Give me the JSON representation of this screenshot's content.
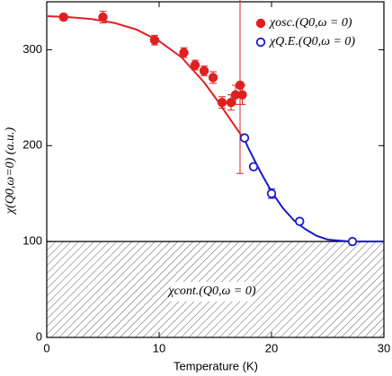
{
  "chart_data": {
    "type": "scatter",
    "xlabel": "Temperature (K)",
    "ylabel": "χ(Q0,ω=0) (a.u.)",
    "xlim": [
      0,
      30
    ],
    "ylim": [
      0,
      350
    ],
    "xticks": [
      0,
      10,
      20,
      30
    ],
    "yticks": [
      0,
      100,
      200,
      300
    ],
    "legend": "upper right",
    "series": [
      {
        "name": "χosc.(Q0,ω = 0)",
        "color": "#e02020",
        "marker": "filled",
        "x": [
          1.5,
          5,
          9.6,
          12.2,
          13.2,
          14,
          14.8,
          15.6,
          16.4,
          16.8,
          17.2,
          17.4
        ],
        "values": [
          334,
          334,
          310,
          297,
          284,
          278,
          271,
          245,
          245,
          253,
          263,
          253
        ],
        "errors": [
          3,
          6,
          5,
          5,
          5,
          5,
          6,
          6,
          8,
          10,
          92,
          10
        ]
      },
      {
        "name": "χQ.E.(Q0,ω = 0)",
        "color": "#1a1acc",
        "marker": "open",
        "x": [
          17.6,
          18.4,
          20,
          22.5,
          27.2
        ],
        "values": [
          208,
          178,
          150,
          121,
          100
        ],
        "errors": [
          2,
          3,
          5,
          3,
          2
        ]
      }
    ],
    "fits": [
      {
        "color": "#e02020",
        "x": [
          0,
          2,
          4,
          6,
          8,
          10,
          12,
          13,
          14,
          15,
          16,
          17,
          17.6
        ],
        "values": [
          335,
          334,
          332,
          328,
          321,
          309,
          292,
          279,
          266,
          250,
          233,
          216,
          206
        ]
      },
      {
        "color": "#1a1acc",
        "x": [
          17.6,
          18,
          19,
          20,
          21,
          22,
          23,
          24,
          25,
          26,
          27,
          28,
          30
        ],
        "values": [
          206,
          196,
          173,
          152,
          135,
          122,
          113,
          106,
          102,
          101,
          100,
          100,
          100
        ]
      }
    ],
    "background": {
      "label": "χcont.(Q0,ω = 0)",
      "value": 100
    }
  }
}
